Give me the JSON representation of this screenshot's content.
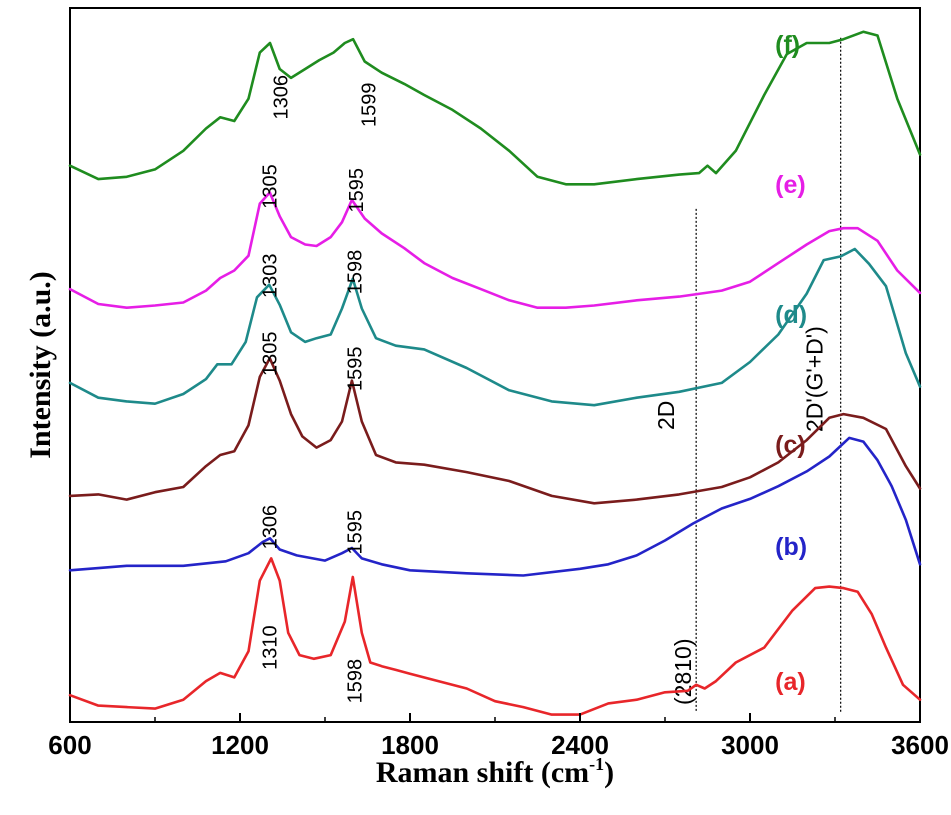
{
  "chart_data": {
    "type": "line",
    "xlabel": "Raman shift (cm",
    "xlabel_sup": "-1",
    "xlabel_close": ")",
    "ylabel": "Intensity (a.u.)",
    "xlim": [
      600,
      3600
    ],
    "x_ticks": [
      "600",
      "1200",
      "1800",
      "2400",
      "3000",
      "3600"
    ],
    "grid": false,
    "series": [
      {
        "name": "(a)",
        "color": "#e8262a",
        "offset": 0,
        "x": [
          600,
          700,
          800,
          900,
          1000,
          1080,
          1130,
          1180,
          1230,
          1270,
          1310,
          1340,
          1370,
          1410,
          1460,
          1520,
          1570,
          1598,
          1630,
          1660,
          1700,
          1750,
          1800,
          1900,
          2000,
          2100,
          2200,
          2300,
          2400,
          2500,
          2600,
          2700,
          2780,
          2810,
          2840,
          2880,
          2950,
          3050,
          3150,
          3230,
          3280,
          3330,
          3380,
          3430,
          3480,
          3540,
          3600
        ],
        "y": [
          0.36,
          0.22,
          0.2,
          0.18,
          0.3,
          0.55,
          0.66,
          0.6,
          0.95,
          1.9,
          2.2,
          1.9,
          1.2,
          0.9,
          0.85,
          0.9,
          1.35,
          1.95,
          1.2,
          0.8,
          0.75,
          0.7,
          0.65,
          0.55,
          0.45,
          0.28,
          0.2,
          0.1,
          0.1,
          0.25,
          0.3,
          0.4,
          0.42,
          0.5,
          0.45,
          0.55,
          0.8,
          1.0,
          1.5,
          1.8,
          1.82,
          1.8,
          1.75,
          1.45,
          1.0,
          0.5,
          0.3
        ]
      },
      {
        "name": "(b)",
        "color": "#2424c8",
        "offset": 1.92,
        "x": [
          600,
          800,
          1000,
          1150,
          1230,
          1280,
          1306,
          1340,
          1400,
          1500,
          1560,
          1595,
          1630,
          1700,
          1800,
          2000,
          2200,
          2400,
          2500,
          2600,
          2700,
          2800,
          2900,
          3000,
          3100,
          3200,
          3280,
          3350,
          3400,
          3450,
          3500,
          3550,
          3600
        ],
        "y": [
          0.12,
          0.18,
          0.18,
          0.24,
          0.35,
          0.5,
          0.55,
          0.4,
          0.32,
          0.25,
          0.35,
          0.42,
          0.28,
          0.2,
          0.12,
          0.08,
          0.05,
          0.14,
          0.2,
          0.32,
          0.52,
          0.75,
          0.95,
          1.08,
          1.25,
          1.45,
          1.65,
          1.9,
          1.85,
          1.6,
          1.25,
          0.8,
          0.2
        ]
      },
      {
        "name": "(c)",
        "color": "#7a1c1c",
        "offset": 2.94,
        "x": [
          600,
          700,
          800,
          900,
          1000,
          1080,
          1130,
          1180,
          1230,
          1270,
          1305,
          1340,
          1380,
          1420,
          1470,
          1520,
          1560,
          1595,
          1630,
          1680,
          1750,
          1850,
          2000,
          2150,
          2300,
          2450,
          2600,
          2750,
          2900,
          3000,
          3100,
          3200,
          3280,
          3330,
          3400,
          3480,
          3550,
          3600
        ],
        "y": [
          0.1,
          0.12,
          0.05,
          0.15,
          0.22,
          0.5,
          0.65,
          0.7,
          1.05,
          1.7,
          1.95,
          1.65,
          1.2,
          0.9,
          0.75,
          0.85,
          1.1,
          1.65,
          1.1,
          0.65,
          0.55,
          0.52,
          0.42,
          0.3,
          0.1,
          0.0,
          0.05,
          0.12,
          0.22,
          0.35,
          0.55,
          0.85,
          1.15,
          1.2,
          1.15,
          1.0,
          0.5,
          0.2
        ]
      },
      {
        "name": "(d)",
        "color": "#1e8a8a",
        "offset": 4.26,
        "x": [
          600,
          700,
          800,
          900,
          1000,
          1080,
          1120,
          1170,
          1220,
          1260,
          1303,
          1340,
          1380,
          1430,
          1470,
          1520,
          1560,
          1598,
          1630,
          1680,
          1750,
          1850,
          2000,
          2150,
          2300,
          2450,
          2600,
          2750,
          2900,
          3000,
          3100,
          3200,
          3260,
          3320,
          3370,
          3420,
          3480,
          3550,
          3600
        ],
        "y": [
          0.3,
          0.1,
          0.05,
          0.02,
          0.15,
          0.35,
          0.55,
          0.55,
          0.85,
          1.45,
          1.62,
          1.35,
          0.98,
          0.85,
          0.9,
          0.95,
          1.3,
          1.7,
          1.3,
          0.9,
          0.8,
          0.75,
          0.5,
          0.2,
          0.05,
          0.0,
          0.1,
          0.18,
          0.3,
          0.58,
          0.95,
          1.5,
          1.95,
          2.0,
          2.1,
          1.9,
          1.6,
          0.7,
          0.25
        ]
      },
      {
        "name": "(e)",
        "color": "#e61ee6",
        "offset": 5.52,
        "x": [
          600,
          700,
          800,
          900,
          1000,
          1080,
          1130,
          1180,
          1230,
          1270,
          1305,
          1340,
          1380,
          1430,
          1470,
          1520,
          1560,
          1595,
          1640,
          1700,
          1780,
          1850,
          1950,
          2050,
          2150,
          2250,
          2350,
          2450,
          2600,
          2750,
          2900,
          3000,
          3100,
          3200,
          3280,
          3330,
          3380,
          3450,
          3520,
          3600
        ],
        "y": [
          0.3,
          0.1,
          0.05,
          0.08,
          0.12,
          0.28,
          0.45,
          0.55,
          0.75,
          1.45,
          1.6,
          1.28,
          1.0,
          0.9,
          0.88,
          1.0,
          1.2,
          1.5,
          1.25,
          1.05,
          0.85,
          0.65,
          0.45,
          0.3,
          0.15,
          0.05,
          0.05,
          0.08,
          0.15,
          0.2,
          0.28,
          0.4,
          0.65,
          0.9,
          1.08,
          1.12,
          1.12,
          0.95,
          0.55,
          0.25
        ]
      },
      {
        "name": "(f)",
        "color": "#1f8c1f",
        "offset": 7.08,
        "x": [
          600,
          700,
          800,
          900,
          1000,
          1080,
          1130,
          1180,
          1230,
          1270,
          1306,
          1340,
          1380,
          1430,
          1480,
          1530,
          1570,
          1599,
          1640,
          1700,
          1780,
          1850,
          1950,
          2050,
          2150,
          2250,
          2350,
          2450,
          2600,
          2750,
          2820,
          2850,
          2880,
          2950,
          3050,
          3130,
          3200,
          3280,
          3330,
          3400,
          3450,
          3520,
          3600
        ],
        "y": [
          0.4,
          0.22,
          0.25,
          0.35,
          0.6,
          0.9,
          1.05,
          1.0,
          1.3,
          1.92,
          2.05,
          1.7,
          1.58,
          1.7,
          1.82,
          1.92,
          2.05,
          2.1,
          1.8,
          1.65,
          1.5,
          1.35,
          1.15,
          0.9,
          0.6,
          0.25,
          0.15,
          0.15,
          0.22,
          0.28,
          0.3,
          0.4,
          0.3,
          0.6,
          1.35,
          1.9,
          2.05,
          2.05,
          2.1,
          2.2,
          2.15,
          1.3,
          0.55
        ]
      }
    ],
    "peak_labels": [
      {
        "text": "1310",
        "x": 1300,
        "y": 1.0
      },
      {
        "text": "1598",
        "x": 1600,
        "y": 0.55
      },
      {
        "text": "1306",
        "x": 1300,
        "y": 2.62
      },
      {
        "text": "1595",
        "x": 1600,
        "y": 2.55
      },
      {
        "text": "1305",
        "x": 1300,
        "y": 4.95
      },
      {
        "text": "1595",
        "x": 1600,
        "y": 4.75
      },
      {
        "text": "1303",
        "x": 1300,
        "y": 6.0
      },
      {
        "text": "1598",
        "x": 1600,
        "y": 6.05
      },
      {
        "text": "1305",
        "x": 1300,
        "y": 7.2
      },
      {
        "text": "1595",
        "x": 1605,
        "y": 7.15
      },
      {
        "text": "1306",
        "x": 1340,
        "y": 8.4
      },
      {
        "text": "1599",
        "x": 1650,
        "y": 8.3
      }
    ],
    "curve_labels": [
      {
        "text": "(a)",
        "x": 3230,
        "color": "#e8262a"
      },
      {
        "text": "(b)",
        "x": 3230,
        "color": "#2424c8"
      },
      {
        "text": "(c)",
        "x": 3230,
        "color": "#7a1c1c"
      },
      {
        "text": "(d)",
        "x": 3230,
        "color": "#1e8a8a"
      },
      {
        "text": "(e)",
        "x": 3230,
        "color": "#e61ee6"
      },
      {
        "text": "(f)",
        "x": 3230,
        "color": "#1f8c1f"
      }
    ],
    "band_lines": [
      {
        "x": 2810,
        "label": "2D",
        "sub_label": "(2810)"
      },
      {
        "x": 3320,
        "label": "2D'(G'+D')"
      }
    ]
  }
}
